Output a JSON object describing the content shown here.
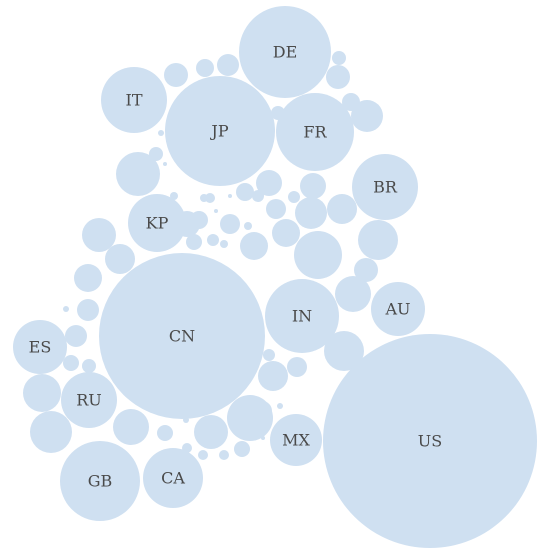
{
  "chart_data": {
    "type": "bubble-pack",
    "bubble_color": "#cfe0f1",
    "label_color": "#4a4a4a",
    "labeled": [
      {
        "label": "US",
        "r": 107
      },
      {
        "label": "CN",
        "r": 83
      },
      {
        "label": "JP",
        "r": 55
      },
      {
        "label": "DE",
        "r": 46
      },
      {
        "label": "FR",
        "r": 39
      },
      {
        "label": "IN",
        "r": 37
      },
      {
        "label": "GB",
        "r": 40
      },
      {
        "label": "BR",
        "r": 33
      },
      {
        "label": "IT",
        "r": 33
      },
      {
        "label": "CA",
        "r": 30
      },
      {
        "label": "RU",
        "r": 28
      },
      {
        "label": "KP",
        "r": 29
      },
      {
        "label": "ES",
        "r": 27
      },
      {
        "label": "AU",
        "r": 27
      },
      {
        "label": "MX",
        "r": 26
      }
    ],
    "unlabeled": [
      {
        "r": 24
      },
      {
        "r": 23
      },
      {
        "r": 22
      },
      {
        "r": 21
      },
      {
        "r": 20
      },
      {
        "r": 20
      },
      {
        "r": 19
      },
      {
        "r": 18
      },
      {
        "r": 18
      },
      {
        "r": 17
      },
      {
        "r": 17
      },
      {
        "r": 16
      },
      {
        "r": 16
      },
      {
        "r": 15
      },
      {
        "r": 15
      },
      {
        "r": 15
      },
      {
        "r": 14
      },
      {
        "r": 14
      },
      {
        "r": 14
      },
      {
        "r": 13
      },
      {
        "r": 13
      },
      {
        "r": 13
      },
      {
        "r": 12
      },
      {
        "r": 12
      },
      {
        "r": 12
      },
      {
        "r": 11
      },
      {
        "r": 11
      },
      {
        "r": 11
      },
      {
        "r": 10
      },
      {
        "r": 10
      },
      {
        "r": 10
      },
      {
        "r": 10
      },
      {
        "r": 9
      },
      {
        "r": 9
      },
      {
        "r": 9
      },
      {
        "r": 9
      },
      {
        "r": 8
      },
      {
        "r": 8
      },
      {
        "r": 8
      },
      {
        "r": 8
      },
      {
        "r": 7
      },
      {
        "r": 7
      },
      {
        "r": 7
      },
      {
        "r": 7
      },
      {
        "r": 6
      },
      {
        "r": 6
      },
      {
        "r": 6
      },
      {
        "r": 6
      },
      {
        "r": 5
      },
      {
        "r": 5
      },
      {
        "r": 5
      },
      {
        "r": 5
      },
      {
        "r": 4
      },
      {
        "r": 4
      },
      {
        "r": 4
      },
      {
        "r": 4
      },
      {
        "r": 3
      },
      {
        "r": 3
      },
      {
        "r": 3
      },
      {
        "r": 3
      },
      {
        "r": 3
      },
      {
        "r": 2
      },
      {
        "r": 2
      },
      {
        "r": 2
      },
      {
        "r": 2
      }
    ]
  }
}
